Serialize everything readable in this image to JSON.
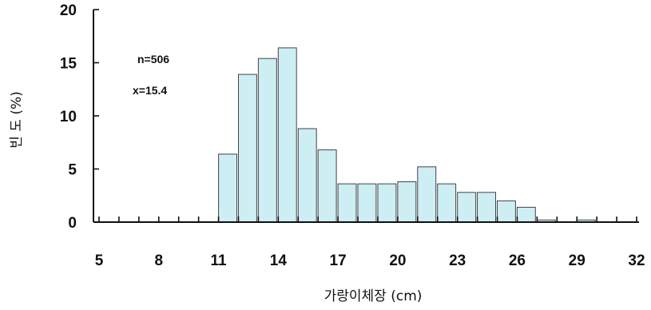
{
  "chart_data": {
    "type": "bar",
    "xlabel": "가랑이체장 (cm)",
    "ylabel": "빈 도 (%)",
    "bar_color": "#cdeef3",
    "bar_edge_color": "#444444",
    "x_tick_labels": [
      "5",
      "8",
      "11",
      "14",
      "17",
      "20",
      "23",
      "26",
      "29",
      "32"
    ],
    "y_tick_labels": [
      "0",
      "5",
      "10",
      "15",
      "20"
    ],
    "xlim": [
      5,
      32
    ],
    "ylim": [
      0,
      20
    ],
    "annotations": [
      "n=506",
      "x=15.4"
    ],
    "bars": [
      {
        "x": 11,
        "value": 6.4
      },
      {
        "x": 12,
        "value": 13.9
      },
      {
        "x": 13,
        "value": 15.4
      },
      {
        "x": 14,
        "value": 16.4
      },
      {
        "x": 15,
        "value": 8.8
      },
      {
        "x": 16,
        "value": 6.8
      },
      {
        "x": 17,
        "value": 3.6
      },
      {
        "x": 18,
        "value": 3.6
      },
      {
        "x": 19,
        "value": 3.6
      },
      {
        "x": 20,
        "value": 3.8
      },
      {
        "x": 21,
        "value": 5.2
      },
      {
        "x": 22,
        "value": 3.6
      },
      {
        "x": 23,
        "value": 2.8
      },
      {
        "x": 24,
        "value": 2.8
      },
      {
        "x": 25,
        "value": 2.0
      },
      {
        "x": 26,
        "value": 1.4
      },
      {
        "x": 27,
        "value": 0.2
      },
      {
        "x": 29,
        "value": 0.2
      }
    ]
  }
}
